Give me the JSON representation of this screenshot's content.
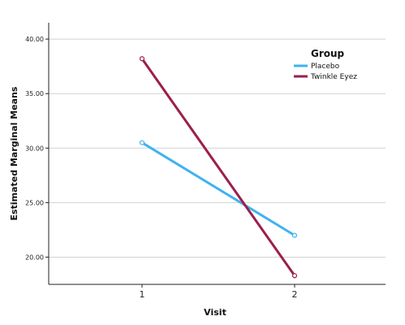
{
  "chart_data": {
    "type": "line",
    "title": "",
    "xlabel": "Visit",
    "ylabel": "Estimated Marginal Means",
    "categories": [
      "1",
      "2"
    ],
    "yticks": [
      "20.00",
      "25.00",
      "30.00",
      "35.00",
      "40.00"
    ],
    "ylim": [
      17.5,
      41.5
    ],
    "grid": true,
    "legend": {
      "title": "Group",
      "position": "top-right"
    },
    "series": [
      {
        "name": "Placebo",
        "values": [
          30.5,
          22.0
        ],
        "color": "#3fb2f0"
      },
      {
        "name": "Twinkle Eyez",
        "values": [
          38.2,
          18.3
        ],
        "color": "#9b1e4c"
      }
    ]
  }
}
